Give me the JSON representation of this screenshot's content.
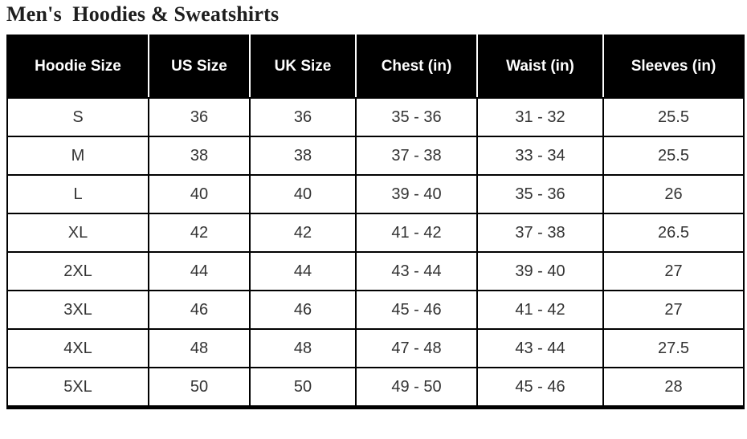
{
  "page": {
    "title": "Men's  Hoodies & Sweatshirts"
  },
  "table": {
    "columns": [
      "Hoodie Size",
      "US Size",
      "UK Size",
      "Chest (in)",
      "Waist (in)",
      "Sleeves (in)"
    ],
    "rows": [
      [
        "S",
        "36",
        "36",
        "35 - 36",
        "31 - 32",
        "25.5"
      ],
      [
        "M",
        "38",
        "38",
        "37 - 38",
        "33 - 34",
        "25.5"
      ],
      [
        "L",
        "40",
        "40",
        "39 - 40",
        "35 - 36",
        "26"
      ],
      [
        "XL",
        "42",
        "42",
        "41 - 42",
        "37 - 38",
        "26.5"
      ],
      [
        "2XL",
        "44",
        "44",
        "43 - 44",
        "39 - 40",
        "27"
      ],
      [
        "3XL",
        "46",
        "46",
        "45 - 46",
        "41 - 42",
        "27"
      ],
      [
        "4XL",
        "48",
        "48",
        "47 - 48",
        "43 - 44",
        "27.5"
      ],
      [
        "5XL",
        "50",
        "50",
        "49 - 50",
        "45 - 46",
        "28"
      ]
    ],
    "colors": {
      "header_background": "#000000",
      "header_text": "#ffffff",
      "cell_text": "#333333",
      "border": "#000000",
      "row_background": "#ffffff"
    }
  }
}
